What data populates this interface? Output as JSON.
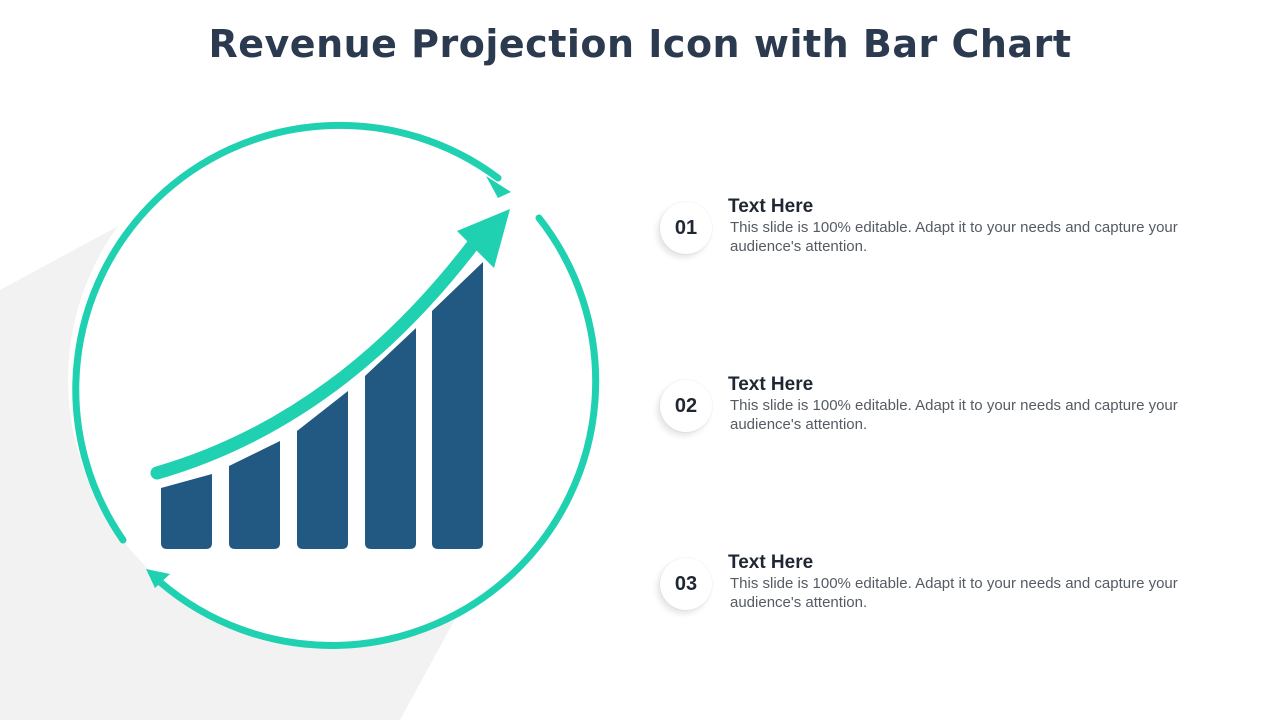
{
  "title": "Revenue Projection Icon with Bar Chart",
  "colors": {
    "title": "#2b3a4f",
    "ring": "#1fd1b0",
    "bars": "#225982",
    "arrow": "#1fd1b0",
    "text": "#555b63"
  },
  "icon": {
    "name": "revenue-projection-icon",
    "bar_count": 5
  },
  "items": [
    {
      "number": "01",
      "heading": "Text Here",
      "body": "This slide is 100% editable. Adapt it to your needs and capture your audience's attention."
    },
    {
      "number": "02",
      "heading": "Text Here",
      "body": "This slide is 100% editable. Adapt it to your needs and capture your audience's attention."
    },
    {
      "number": "03",
      "heading": "Text Here",
      "body": "This slide is 100% editable. Adapt it to your needs and capture your audience's attention."
    }
  ]
}
